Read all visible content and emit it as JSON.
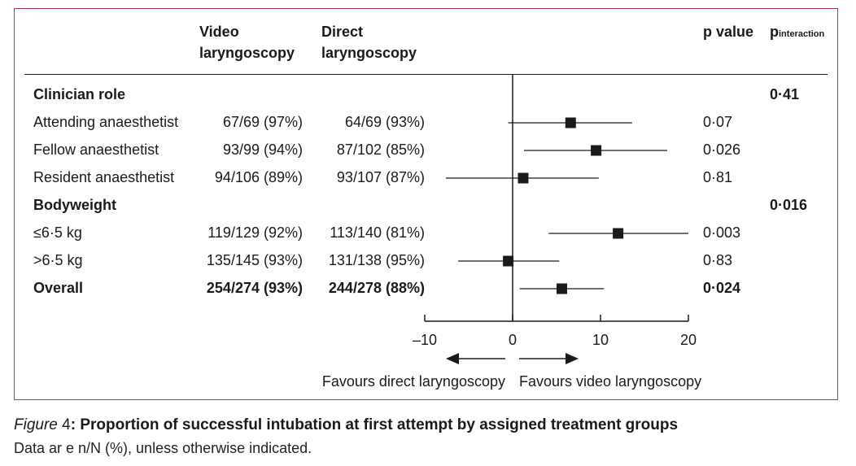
{
  "headers": {
    "video_line1": "Video",
    "video_line2": "laryngoscopy",
    "direct_line1": "Direct",
    "direct_line2": "laryngoscopy",
    "pvalue": "p value",
    "pinteraction_main": "p",
    "pinteraction_sub": "interaction"
  },
  "rows": [
    {
      "label": "Clinician role",
      "bold": true,
      "video": "",
      "direct": "",
      "p": "",
      "pint": "0·41"
    },
    {
      "label": "Attending anaesthetist",
      "bold": false,
      "video": "67/69 (97%)",
      "direct": "64/69 (93%)",
      "p": "0·07",
      "pint": ""
    },
    {
      "label": "Fellow anaesthetist",
      "bold": false,
      "video": "93/99 (94%)",
      "direct": "87/102 (85%)",
      "p": "0·026",
      "pint": ""
    },
    {
      "label": "Resident anaesthetist",
      "bold": false,
      "video": "94/106 (89%)",
      "direct": "93/107 (87%)",
      "p": "0·81",
      "pint": ""
    },
    {
      "label": "Bodyweight",
      "bold": true,
      "video": "",
      "direct": "",
      "p": "",
      "pint": "0·016"
    },
    {
      "label": "≤6·5 kg",
      "bold": false,
      "video": "119/129 (92%)",
      "direct": "113/140 (81%)",
      "p": "0·003",
      "pint": ""
    },
    {
      "label": ">6·5 kg",
      "bold": false,
      "video": "135/145 (93%)",
      "direct": "131/138 (95%)",
      "p": "0·83",
      "pint": ""
    },
    {
      "label": "Overall",
      "bold": true,
      "video": "254/274 (93%)",
      "direct": "244/278 (88%)",
      "p": "0·024",
      "pint": ""
    }
  ],
  "chart_data": {
    "type": "forest",
    "xlim": [
      -10,
      20
    ],
    "ticks": [
      -10,
      0,
      10,
      20
    ],
    "tick_labels": [
      "–10",
      "0",
      "10",
      "20"
    ],
    "reference_line": 0,
    "estimates": [
      {
        "row": "Attending anaesthetist",
        "est": 6.6,
        "low": -0.5,
        "high": 13.6
      },
      {
        "row": "Fellow anaesthetist",
        "est": 9.5,
        "low": 1.3,
        "high": 17.6
      },
      {
        "row": "Resident anaesthetist",
        "est": 1.2,
        "low": -7.6,
        "high": 9.8
      },
      {
        "row": "≤6·5 kg",
        "est": 12.0,
        "low": 4.1,
        "high": 20.0
      },
      {
        "row": ">6·5 kg",
        "est": -0.5,
        "low": -6.2,
        "high": 5.3
      },
      {
        "row": "Overall",
        "est": 5.6,
        "low": 0.8,
        "high": 10.4
      }
    ],
    "favours_left": "Favours direct laryngoscopy",
    "favours_right": "Favours video laryngoscopy"
  },
  "caption": {
    "figure_word": "Figure",
    "figure_num": " 4",
    "title": ": Proportion of successful intubation at first attempt by assigned treatment groups",
    "note": "Data ar  e n/N (%), unless otherwise indicated."
  },
  "colors": {
    "frame": "#b0306a",
    "ink": "#1a1a1a"
  }
}
